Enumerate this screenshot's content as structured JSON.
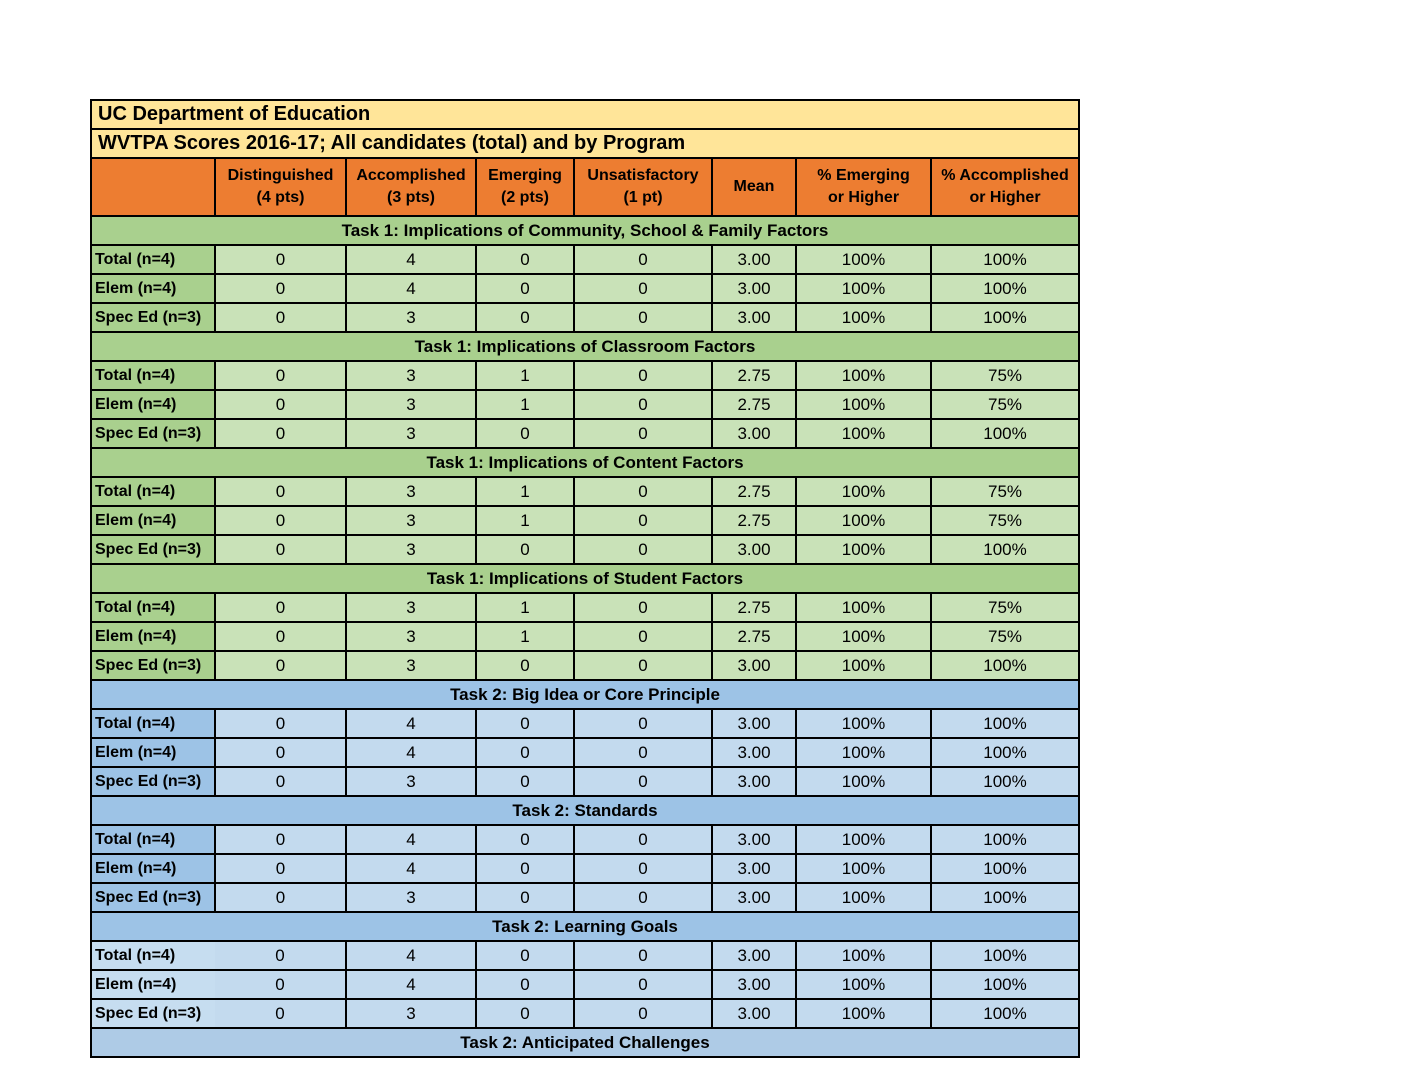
{
  "titles": {
    "line1": "UC Department of Education",
    "line2": "WVTPA Scores 2016-17; All candidates (total) and by Program"
  },
  "columns": [
    {
      "line1": "Distinguished",
      "line2": "(4 pts)"
    },
    {
      "line1": "Accomplished",
      "line2": "(3 pts)"
    },
    {
      "line1": "Emerging",
      "line2": "(2 pts)"
    },
    {
      "line1": "Unsatisfactory",
      "line2": "(1 pt)"
    },
    {
      "line1": "Mean",
      "line2": ""
    },
    {
      "line1": "% Emerging",
      "line2": "or Higher"
    },
    {
      "line1": "% Accomplished",
      "line2": "or Higher"
    }
  ],
  "sections": [
    {
      "title": "Task 1: Implications of Community, School & Family Factors",
      "theme": "green",
      "rows": [
        {
          "label": "Total (n=4)",
          "values": [
            "0",
            "4",
            "0",
            "0",
            "3.00",
            "100%",
            "100%"
          ]
        },
        {
          "label": "Elem (n=4)",
          "values": [
            "0",
            "4",
            "0",
            "0",
            "3.00",
            "100%",
            "100%"
          ]
        },
        {
          "label": "Spec Ed (n=3)",
          "values": [
            "0",
            "3",
            "0",
            "0",
            "3.00",
            "100%",
            "100%"
          ]
        }
      ]
    },
    {
      "title": "Task 1: Implications of Classroom Factors",
      "theme": "green",
      "rows": [
        {
          "label": "Total (n=4)",
          "values": [
            "0",
            "3",
            "1",
            "0",
            "2.75",
            "100%",
            "75%"
          ]
        },
        {
          "label": "Elem (n=4)",
          "values": [
            "0",
            "3",
            "1",
            "0",
            "2.75",
            "100%",
            "75%"
          ]
        },
        {
          "label": "Spec Ed (n=3)",
          "values": [
            "0",
            "3",
            "0",
            "0",
            "3.00",
            "100%",
            "100%"
          ]
        }
      ]
    },
    {
      "title": "Task 1: Implications of Content Factors",
      "theme": "green",
      "rows": [
        {
          "label": "Total (n=4)",
          "values": [
            "0",
            "3",
            "1",
            "0",
            "2.75",
            "100%",
            "75%"
          ]
        },
        {
          "label": "Elem (n=4)",
          "values": [
            "0",
            "3",
            "1",
            "0",
            "2.75",
            "100%",
            "75%"
          ]
        },
        {
          "label": "Spec Ed (n=3)",
          "values": [
            "0",
            "3",
            "0",
            "0",
            "3.00",
            "100%",
            "100%"
          ]
        }
      ]
    },
    {
      "title": "Task 1: Implications of Student Factors",
      "theme": "green",
      "rows": [
        {
          "label": "Total (n=4)",
          "values": [
            "0",
            "3",
            "1",
            "0",
            "2.75",
            "100%",
            "75%"
          ]
        },
        {
          "label": "Elem (n=4)",
          "values": [
            "0",
            "3",
            "1",
            "0",
            "2.75",
            "100%",
            "75%"
          ]
        },
        {
          "label": "Spec Ed (n=3)",
          "values": [
            "0",
            "3",
            "0",
            "0",
            "3.00",
            "100%",
            "100%"
          ]
        }
      ]
    },
    {
      "title": "Task 2: Big Idea or Core Principle",
      "theme": "blue",
      "rows": [
        {
          "label": "Total (n=4)",
          "values": [
            "0",
            "4",
            "0",
            "0",
            "3.00",
            "100%",
            "100%"
          ]
        },
        {
          "label": "Elem (n=4)",
          "values": [
            "0",
            "4",
            "0",
            "0",
            "3.00",
            "100%",
            "100%"
          ]
        },
        {
          "label": "Spec Ed (n=3)",
          "values": [
            "0",
            "3",
            "0",
            "0",
            "3.00",
            "100%",
            "100%"
          ]
        }
      ]
    },
    {
      "title": "Task 2: Standards",
      "theme": "blue",
      "rows": [
        {
          "label": "Total (n=4)",
          "values": [
            "0",
            "4",
            "0",
            "0",
            "3.00",
            "100%",
            "100%"
          ]
        },
        {
          "label": "Elem (n=4)",
          "values": [
            "0",
            "4",
            "0",
            "0",
            "3.00",
            "100%",
            "100%"
          ]
        },
        {
          "label": "Spec Ed (n=3)",
          "values": [
            "0",
            "3",
            "0",
            "0",
            "3.00",
            "100%",
            "100%"
          ]
        }
      ]
    },
    {
      "title": "Task 2: Learning Goals",
      "theme": "blue",
      "label_variant": "light",
      "rows": [
        {
          "label": "Total (n=4)",
          "values": [
            "0",
            "4",
            "0",
            "0",
            "3.00",
            "100%",
            "100%"
          ]
        },
        {
          "label": "Elem (n=4)",
          "values": [
            "0",
            "4",
            "0",
            "0",
            "3.00",
            "100%",
            "100%"
          ]
        },
        {
          "label": "Spec Ed (n=3)",
          "values": [
            "0",
            "3",
            "0",
            "0",
            "3.00",
            "100%",
            "100%"
          ]
        }
      ]
    },
    {
      "title": "Task 2: Anticipated Challenges",
      "theme": "blue_light",
      "rows": []
    }
  ],
  "colors": {
    "title_bg": "#ffe599",
    "header_bg": "#ed7d31",
    "green_band": "#a9d08e",
    "green_label": "#a9d08e",
    "green_cell": "#c9e2b8",
    "blue_band": "#9dc3e6",
    "blue_label": "#9dc3e6",
    "blue_cell": "#c3daee",
    "blue_light_band": "#aecbe6",
    "blue_label_light": "#c6ddf0",
    "border": "#000000"
  }
}
